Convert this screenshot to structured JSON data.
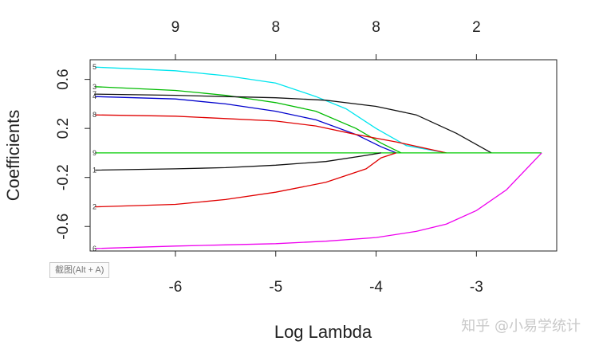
{
  "chart_data": {
    "type": "line",
    "xlabel": "Log Lambda",
    "ylabel": "Coefficients",
    "xlim": [
      -6.85,
      -2.2
    ],
    "ylim": [
      -0.8,
      0.76
    ],
    "x_ticks": [
      -6,
      -5,
      -4,
      -3
    ],
    "x_tick_labels": [
      "-6",
      "-5",
      "-4",
      "-3"
    ],
    "y_ticks": [
      -0.6,
      -0.2,
      0.2,
      0.6
    ],
    "y_tick_labels": [
      "-0.6",
      "-0.2",
      "0.2",
      "0.6"
    ],
    "top_ticks": [
      -6,
      -5,
      -4,
      -3
    ],
    "top_tick_labels": [
      "9",
      "8",
      "8",
      "2"
    ],
    "grid": false,
    "series": [
      {
        "name": "5",
        "color": "#00e5ee",
        "points": [
          [
            -6.8,
            0.7
          ],
          [
            -6,
            0.67
          ],
          [
            -5.5,
            0.63
          ],
          [
            -5,
            0.57
          ],
          [
            -4.6,
            0.46
          ],
          [
            -4.3,
            0.36
          ],
          [
            -4,
            0.2
          ],
          [
            -3.7,
            0.06
          ],
          [
            -3.3,
            0
          ]
        ]
      },
      {
        "name": "3",
        "color": "#00bb00",
        "points": [
          [
            -6.8,
            0.54
          ],
          [
            -6,
            0.51
          ],
          [
            -5.5,
            0.47
          ],
          [
            -5,
            0.41
          ],
          [
            -4.6,
            0.34
          ],
          [
            -4.2,
            0.2
          ],
          [
            -3.95,
            0.08
          ],
          [
            -3.75,
            0
          ]
        ]
      },
      {
        "name": "4",
        "color": "#0000cc",
        "points": [
          [
            -6.8,
            0.46
          ],
          [
            -6,
            0.44
          ],
          [
            -5.5,
            0.4
          ],
          [
            -5,
            0.34
          ],
          [
            -4.6,
            0.27
          ],
          [
            -4.2,
            0.15
          ],
          [
            -3.95,
            0.05
          ],
          [
            -3.8,
            0
          ]
        ]
      },
      {
        "name": "8",
        "color": "#e00000",
        "points": [
          [
            -6.8,
            0.31
          ],
          [
            -6,
            0.3
          ],
          [
            -5.5,
            0.28
          ],
          [
            -5,
            0.26
          ],
          [
            -4.6,
            0.22
          ],
          [
            -4.2,
            0.15
          ],
          [
            -3.8,
            0.09
          ],
          [
            -3.3,
            0
          ]
        ]
      },
      {
        "name": "7",
        "color": "#111111",
        "points": [
          [
            -6.8,
            0.48
          ],
          [
            -6,
            0.47
          ],
          [
            -5.5,
            0.46
          ],
          [
            -5,
            0.45
          ],
          [
            -4.5,
            0.43
          ],
          [
            -4,
            0.38
          ],
          [
            -3.6,
            0.31
          ],
          [
            -3.2,
            0.16
          ],
          [
            -2.85,
            0
          ]
        ]
      },
      {
        "name": "9",
        "color": "#00cc00",
        "points": [
          [
            -6.8,
            0
          ],
          [
            -2.35,
            0
          ]
        ]
      },
      {
        "name": "1",
        "color": "#111111",
        "points": [
          [
            -6.8,
            -0.14
          ],
          [
            -6,
            -0.13
          ],
          [
            -5.5,
            -0.12
          ],
          [
            -5,
            -0.1
          ],
          [
            -4.5,
            -0.07
          ],
          [
            -4.1,
            -0.02
          ],
          [
            -3.95,
            0
          ]
        ]
      },
      {
        "name": "2",
        "color": "#e00000",
        "points": [
          [
            -6.8,
            -0.44
          ],
          [
            -6,
            -0.42
          ],
          [
            -5.5,
            -0.38
          ],
          [
            -5,
            -0.32
          ],
          [
            -4.5,
            -0.24
          ],
          [
            -4.1,
            -0.13
          ],
          [
            -3.95,
            -0.04
          ],
          [
            -3.8,
            0
          ]
        ]
      },
      {
        "name": "6",
        "color": "#ee00ee",
        "points": [
          [
            -6.8,
            -0.78
          ],
          [
            -6,
            -0.76
          ],
          [
            -5.5,
            -0.75
          ],
          [
            -5,
            -0.74
          ],
          [
            -4.5,
            -0.72
          ],
          [
            -4,
            -0.69
          ],
          [
            -3.6,
            -0.64
          ],
          [
            -3.3,
            -0.58
          ],
          [
            -3,
            -0.47
          ],
          [
            -2.7,
            -0.3
          ],
          [
            -2.35,
            0
          ]
        ]
      }
    ]
  },
  "tooltip": "截图(Alt + A)",
  "watermark": "知乎 @小易学统计"
}
